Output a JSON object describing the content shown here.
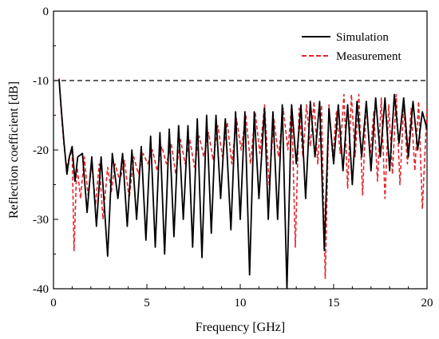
{
  "chart_data": {
    "type": "line",
    "title": "",
    "xlabel": "Frequency [GHz]",
    "ylabel": "Reflection coefficient [dB]",
    "xlim": [
      0,
      20
    ],
    "ylim": [
      -40,
      0
    ],
    "xticks": [
      0,
      5,
      10,
      15,
      20
    ],
    "yticks": [
      0,
      -10,
      -20,
      -30,
      -40
    ],
    "xtick_labels": [
      "0",
      "5",
      "10",
      "15",
      "20"
    ],
    "ytick_labels": [
      "0",
      "-10",
      "-20",
      "-30",
      "-40"
    ],
    "grid": false,
    "legend_position": "top-right",
    "reference_line": {
      "y": -10,
      "style": "dashed",
      "color": "#000000"
    },
    "series": [
      {
        "name": "Simulation",
        "color": "#000000",
        "style": "solid",
        "x": [
          0.3,
          0.4,
          0.55,
          0.72,
          0.85,
          1.0,
          1.15,
          1.3,
          1.55,
          1.8,
          2.05,
          2.3,
          2.55,
          2.9,
          3.15,
          3.45,
          3.7,
          3.95,
          4.2,
          4.45,
          4.7,
          4.95,
          5.2,
          5.45,
          5.7,
          5.95,
          6.2,
          6.45,
          6.7,
          6.95,
          7.2,
          7.45,
          7.7,
          7.95,
          8.2,
          8.45,
          8.7,
          8.95,
          9.2,
          9.5,
          9.75,
          10.0,
          10.25,
          10.5,
          10.75,
          11.0,
          11.3,
          11.5,
          11.75,
          12.0,
          12.25,
          12.5,
          12.75,
          13.0,
          13.25,
          13.5,
          13.75,
          14.0,
          14.25,
          14.5,
          14.75,
          15.0,
          15.25,
          15.5,
          15.75,
          16.0,
          16.25,
          16.5,
          16.75,
          17.0,
          17.25,
          17.5,
          17.75,
          18.0,
          18.25,
          18.5,
          18.75,
          19.0,
          19.25,
          19.5,
          19.75,
          20.0
        ],
        "y": [
          -9.8,
          -13.5,
          -18.5,
          -23.5,
          -21.0,
          -19.5,
          -24.5,
          -21.0,
          -20.5,
          -29.0,
          -21.0,
          -31.0,
          -21.0,
          -35.3,
          -20.5,
          -27.0,
          -20.5,
          -31.0,
          -20.0,
          -30.0,
          -19.5,
          -33.0,
          -18.0,
          -34.0,
          -17.5,
          -35.0,
          -17.0,
          -32.5,
          -16.5,
          -30.0,
          -16.5,
          -34.0,
          -15.5,
          -35.5,
          -15.0,
          -32.0,
          -15.0,
          -27.0,
          -15.5,
          -31.5,
          -14.5,
          -30.0,
          -14.5,
          -38.0,
          -14.5,
          -27.0,
          -14.0,
          -30.0,
          -14.5,
          -30.0,
          -13.5,
          -40.0,
          -13.5,
          -22.0,
          -13.5,
          -27.0,
          -13.0,
          -21.0,
          -13.0,
          -34.5,
          -14.0,
          -22.0,
          -13.5,
          -23.0,
          -13.5,
          -25.0,
          -13.0,
          -21.0,
          -13.0,
          -23.0,
          -12.5,
          -21.0,
          -12.5,
          -23.0,
          -12.0,
          -19.0,
          -12.5,
          -21.0,
          -13.0,
          -20.0,
          -14.5,
          -17.0
        ]
      },
      {
        "name": "Measurement",
        "color": "#e8232a",
        "style": "dashed",
        "x": [
          0.3,
          0.4,
          0.55,
          0.7,
          0.85,
          1.0,
          1.1,
          1.25,
          1.45,
          1.65,
          1.85,
          2.05,
          2.25,
          2.45,
          2.65,
          2.9,
          3.1,
          3.3,
          3.55,
          3.8,
          4.05,
          4.3,
          4.55,
          4.8,
          5.05,
          5.3,
          5.55,
          5.8,
          6.05,
          6.3,
          6.55,
          6.8,
          7.05,
          7.3,
          7.55,
          7.8,
          8.05,
          8.3,
          8.55,
          8.8,
          9.05,
          9.3,
          9.55,
          9.8,
          10.05,
          10.3,
          10.55,
          10.8,
          11.05,
          11.3,
          11.55,
          11.8,
          12.05,
          12.3,
          12.55,
          12.75,
          12.95,
          13.15,
          13.35,
          13.55,
          13.75,
          13.95,
          14.15,
          14.35,
          14.55,
          14.75,
          14.95,
          15.15,
          15.35,
          15.55,
          15.75,
          15.95,
          16.15,
          16.35,
          16.55,
          16.75,
          16.95,
          17.15,
          17.35,
          17.55,
          17.75,
          17.95,
          18.15,
          18.35,
          18.55,
          18.75,
          18.95,
          19.15,
          19.35,
          19.55,
          19.75,
          20.0
        ],
        "y": [
          -9.7,
          -14.0,
          -19.0,
          -22.5,
          -21.0,
          -20.0,
          -34.5,
          -22.0,
          -27.0,
          -21.0,
          -26.5,
          -22.0,
          -28.0,
          -22.0,
          -30.0,
          -22.5,
          -26.0,
          -22.0,
          -24.5,
          -21.5,
          -27.0,
          -21.0,
          -23.5,
          -20.5,
          -22.0,
          -20.0,
          -23.0,
          -19.5,
          -22.0,
          -19.0,
          -23.5,
          -18.5,
          -22.0,
          -18.5,
          -22.5,
          -18.0,
          -21.0,
          -17.5,
          -21.5,
          -16.5,
          -21.0,
          -16.0,
          -22.0,
          -15.5,
          -20.0,
          -15.0,
          -22.0,
          -14.5,
          -20.5,
          -13.5,
          -25.0,
          -15.5,
          -21.0,
          -14.0,
          -20.0,
          -13.5,
          -34.0,
          -14.0,
          -21.0,
          -13.5,
          -19.5,
          -13.0,
          -22.0,
          -13.5,
          -38.5,
          -13.5,
          -21.0,
          -14.5,
          -20.5,
          -12.0,
          -25.5,
          -12.0,
          -21.0,
          -12.0,
          -26.5,
          -13.0,
          -21.0,
          -14.5,
          -24.5,
          -12.5,
          -27.0,
          -13.5,
          -23.5,
          -12.0,
          -25.0,
          -13.5,
          -22.0,
          -14.0,
          -23.0,
          -13.0,
          -28.5,
          -14.0
        ]
      }
    ]
  }
}
